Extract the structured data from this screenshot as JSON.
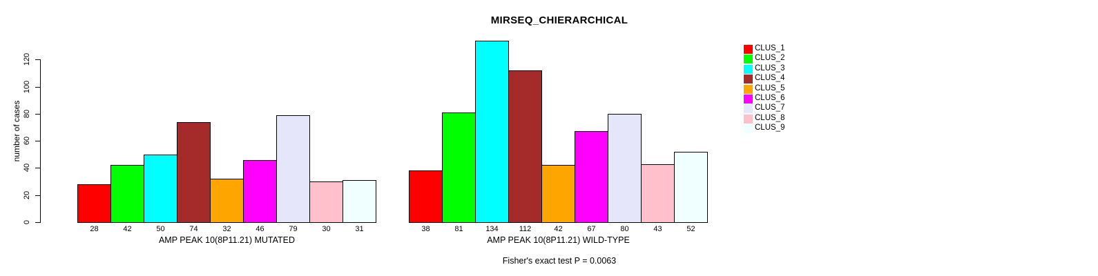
{
  "chart_data": {
    "type": "bar",
    "title": "MIRSEQ_CHIERARCHICAL",
    "ylabel": "number of cases",
    "xlabel": "",
    "ylim": [
      0,
      120
    ],
    "yticks": [
      0,
      20,
      40,
      60,
      80,
      100,
      120
    ],
    "grid": false,
    "legend_position": "right",
    "bar_border_color": "#000000",
    "bar_value_labels": true,
    "legend": [
      {
        "label": "CLUS_1",
        "color": "#FF0000"
      },
      {
        "label": "CLUS_2",
        "color": "#00FF00"
      },
      {
        "label": "CLUS_3",
        "color": "#00FFFF"
      },
      {
        "label": "CLUS_4",
        "color": "#A52A2A"
      },
      {
        "label": "CLUS_5",
        "color": "#FFA500"
      },
      {
        "label": "CLUS_6",
        "color": "#FF00FF"
      },
      {
        "label": "CLUS_7",
        "color": "#E6E6FA"
      },
      {
        "label": "CLUS_8",
        "color": "#FFC0CB"
      },
      {
        "label": "CLUS_9",
        "color": "#F0FFFF"
      }
    ],
    "groups": [
      {
        "label": "AMP PEAK 10(8P11.21) MUTATED",
        "values": [
          28,
          42,
          50,
          74,
          32,
          46,
          79,
          30,
          31
        ]
      },
      {
        "label": "AMP PEAK 10(8P11.21) WILD-TYPE",
        "values": [
          38,
          81,
          134,
          112,
          42,
          67,
          80,
          43,
          52
        ]
      }
    ],
    "annotation": "Fisher's exact test P = 0.0063"
  }
}
